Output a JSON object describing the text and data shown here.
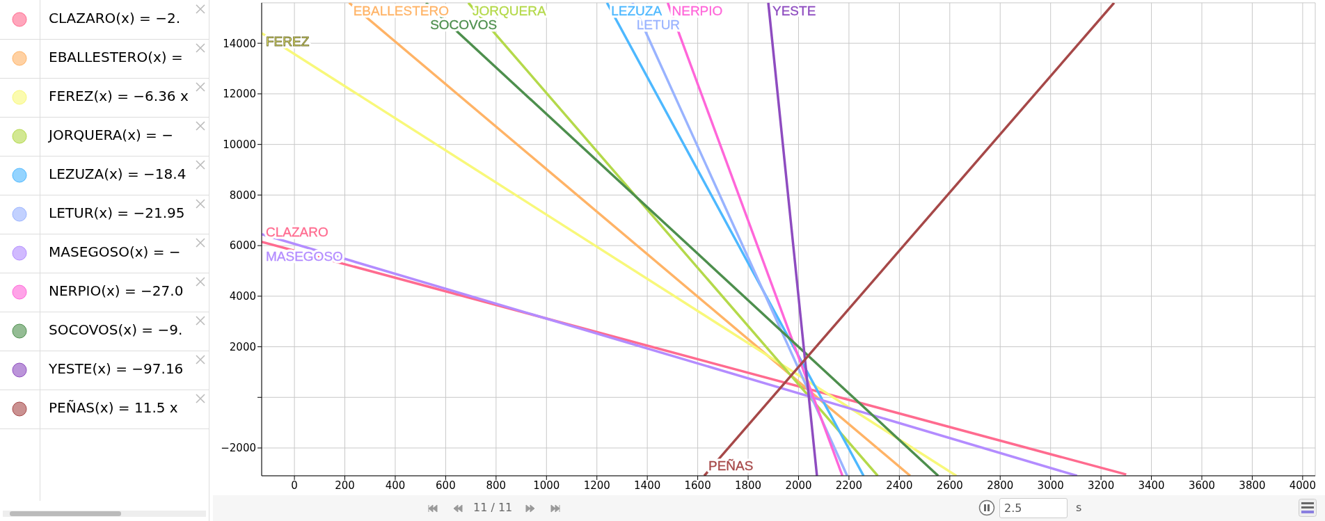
{
  "chart_data": {
    "type": "line",
    "xlim": [
      -130,
      4050
    ],
    "ylim": [
      -3100,
      15600
    ],
    "xticks": [
      0,
      200,
      400,
      600,
      800,
      1000,
      1200,
      1400,
      1600,
      1800,
      2000,
      2200,
      2400,
      2600,
      2800,
      3000,
      3200,
      3400,
      3600,
      3800,
      4000
    ],
    "yticks": [
      -2000,
      {
        "value": 0,
        "label": null
      },
      2000,
      4000,
      6000,
      8000,
      10000,
      12000,
      14000
    ],
    "grid": true,
    "series": [
      {
        "name": "CLAZARO",
        "color": "#ff6b8f",
        "x": [
          -130,
          3300
        ],
        "values": [
          6150,
          -3050
        ]
      },
      {
        "name": "EBALLESTERO",
        "color": "#ffb366",
        "x": [
          217,
          2443
        ],
        "values": [
          15600,
          -3100
        ]
      },
      {
        "name": "FEREZ",
        "color": "#f8f87a",
        "x": [
          -130,
          2626
        ],
        "values": [
          14400,
          -3100
        ]
      },
      {
        "name": "JORQUERA",
        "color": "#b4d94a",
        "x": [
          690,
          2314
        ],
        "values": [
          15600,
          -3100
        ]
      },
      {
        "name": "LEZUZA",
        "color": "#4db8ff",
        "x": [
          1240,
          2258
        ],
        "values": [
          15600,
          -3100
        ]
      },
      {
        "name": "LETUR",
        "color": "#99b3ff",
        "x": [
          1341,
          2193
        ],
        "values": [
          15600,
          -3100
        ]
      },
      {
        "name": "MASEGOSO",
        "color": "#b38cff",
        "x": [
          -130,
          3105
        ],
        "values": [
          6450,
          -3100
        ]
      },
      {
        "name": "NERPIO",
        "color": "#ff66d9",
        "x": [
          1481,
          2174
        ],
        "values": [
          15600,
          -3100
        ]
      },
      {
        "name": "SOCOVOS",
        "color": "#4d8f4d",
        "x": [
          522,
          2554
        ],
        "values": [
          15600,
          -3100
        ]
      },
      {
        "name": "YESTE",
        "color": "#8e4cc0",
        "x": [
          1880,
          2073
        ],
        "values": [
          15600,
          -3100
        ]
      },
      {
        "name": "PEÑAS",
        "color": "#a64848",
        "x": [
          1626,
          3252
        ],
        "values": [
          -3100,
          15600
        ]
      }
    ],
    "annotations": [
      "CLAZARO(x) = −2.",
      "EBALLESTERO(x) =",
      "FEREZ(x) = −6.36 x",
      "JORQUERA(x) = −",
      "LEZUZA(x) = −18.4",
      "LETUR(x) = −21.95",
      "MASEGOSO(x) = −",
      "NERPIO(x) = −27.0",
      "SOCOVOS(x) = −9.",
      "YESTE(x) = −97.16",
      "PEÑAS(x) = 11.5 x",
      "11 / 11",
      "2.5",
      "s"
    ]
  }
}
